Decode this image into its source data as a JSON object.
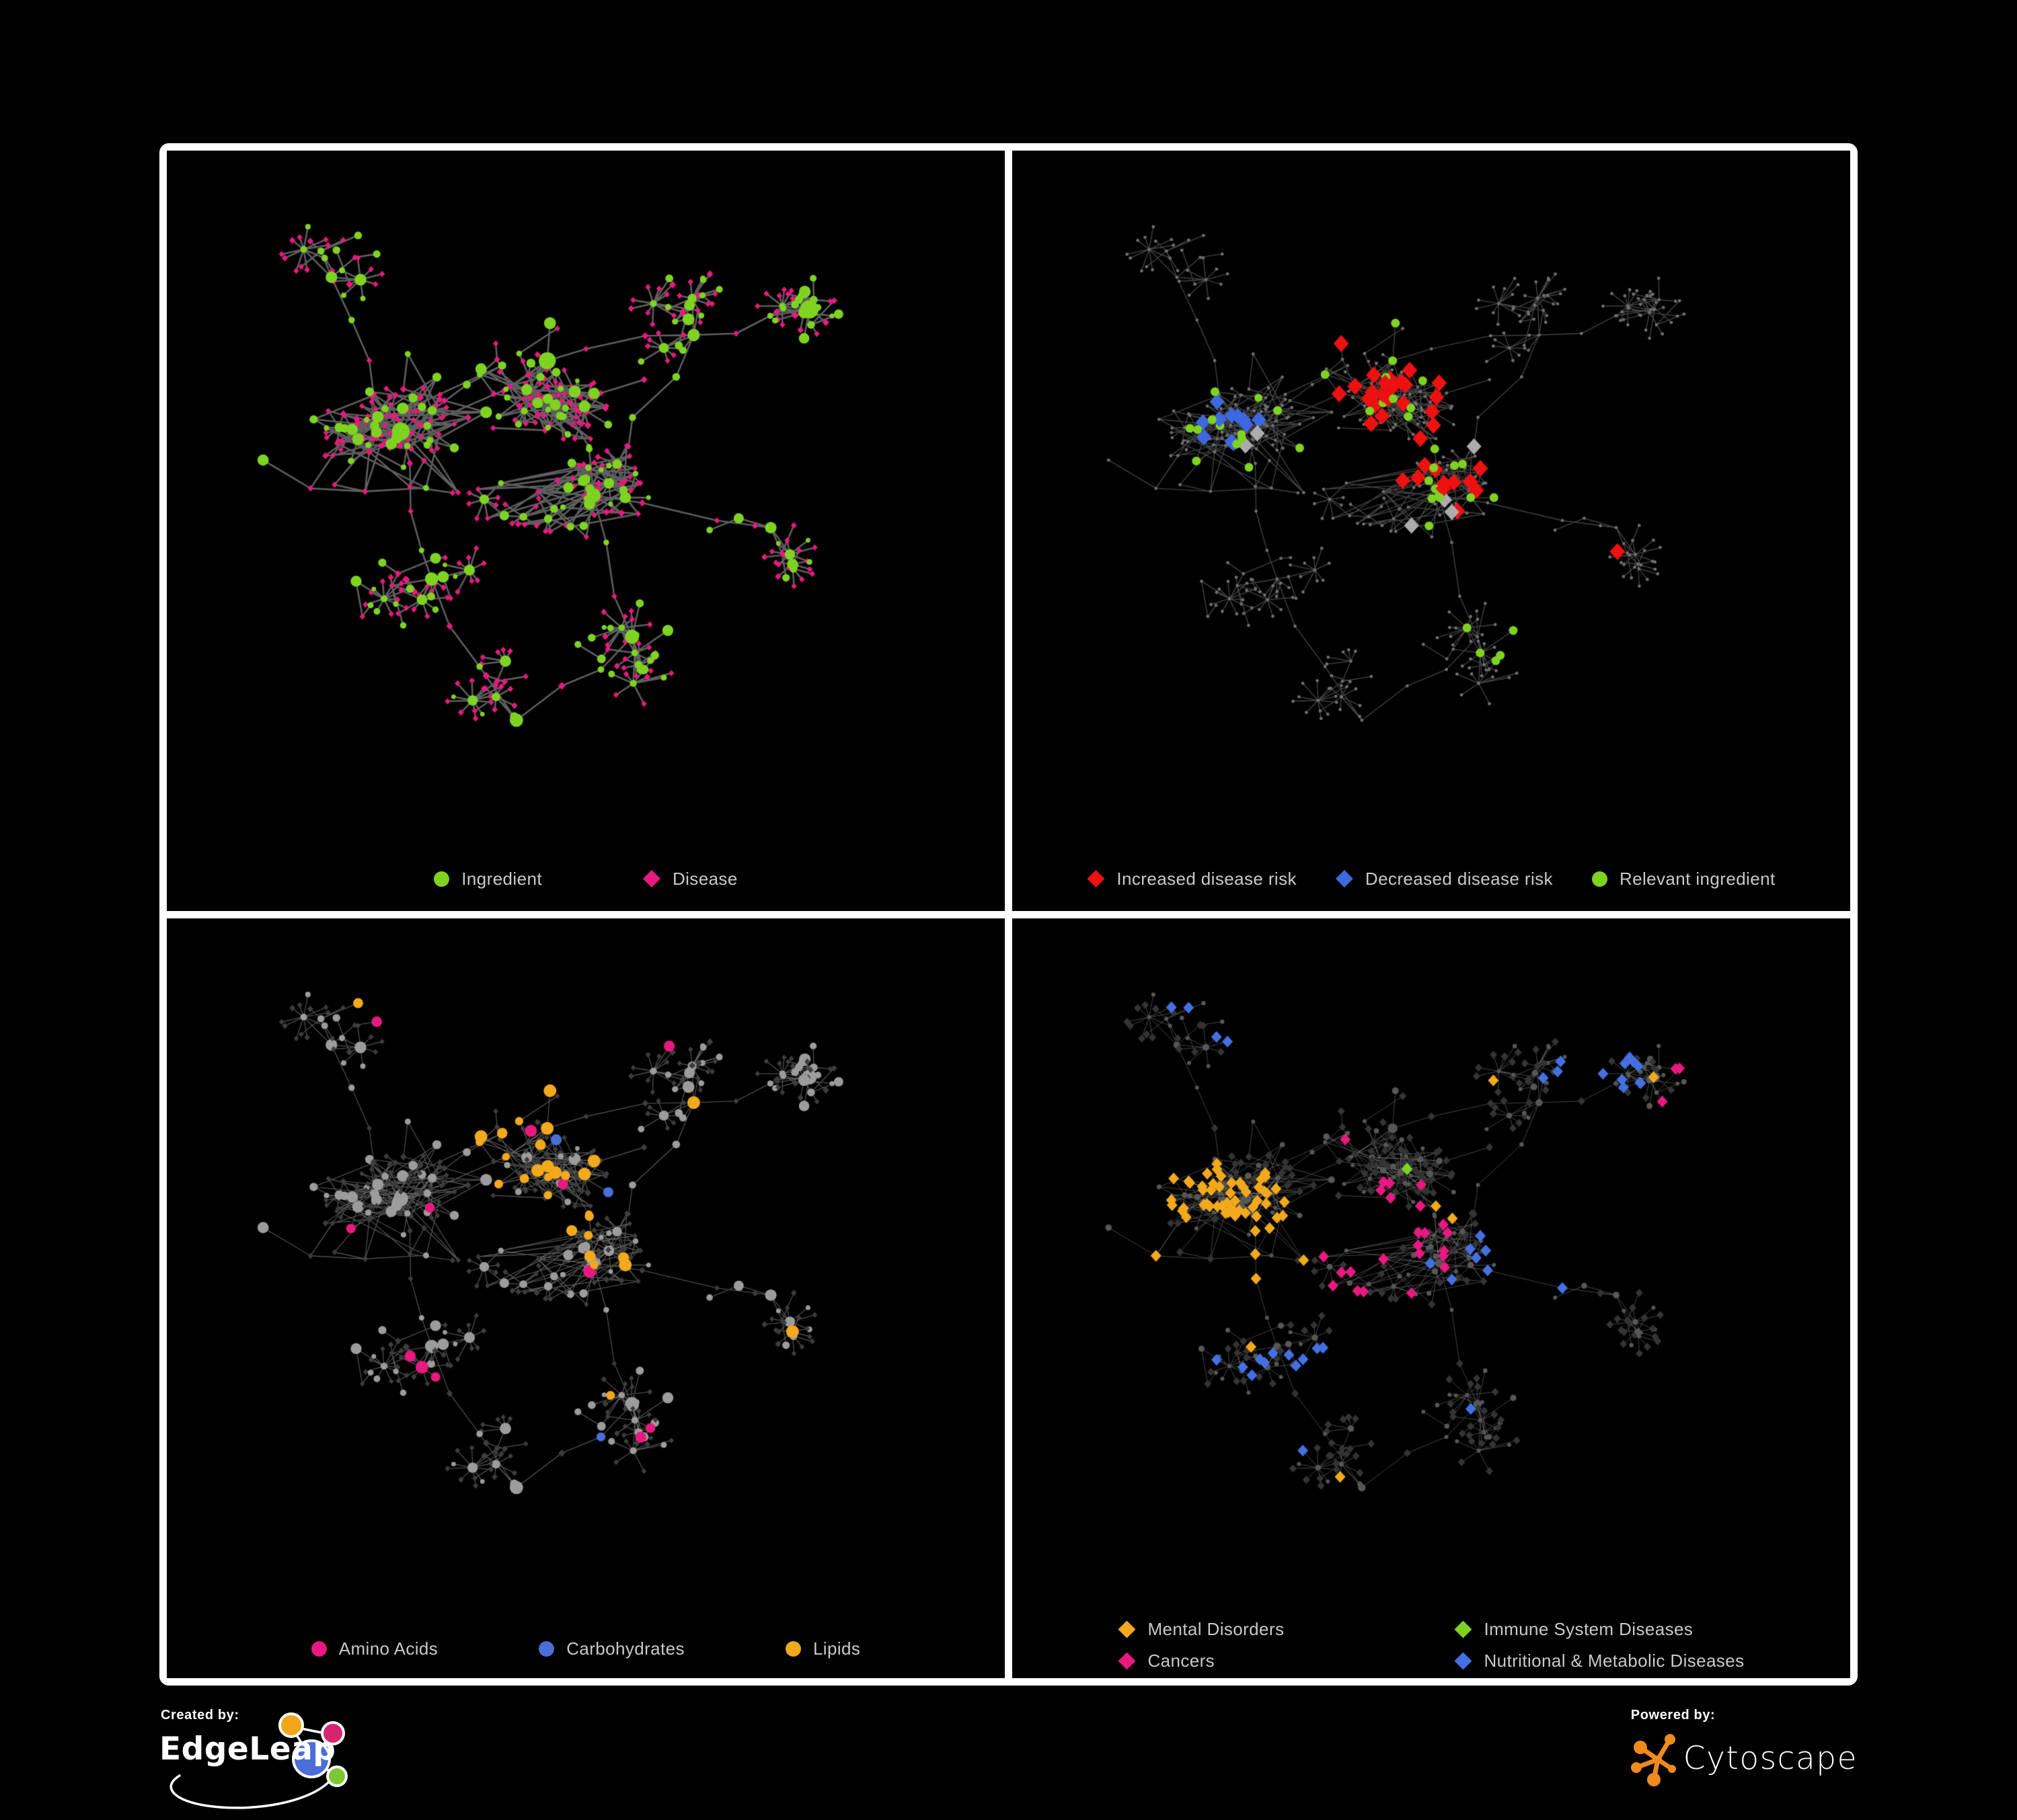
{
  "figure": {
    "background": "#000000",
    "frame_color": "#FFFFFF"
  },
  "panels": [
    {
      "id": "ingredient-disease",
      "legend": [
        {
          "label": "Ingredient",
          "shape": "circle",
          "color": "#7ED321"
        },
        {
          "label": "Disease",
          "shape": "diamond",
          "color": "#E8197F"
        }
      ],
      "style": {
        "edge_color": "#686868",
        "edge_width": 2.6,
        "edge_alpha": 0.9
      }
    },
    {
      "id": "disease-risk",
      "legend": [
        {
          "label": "Increased disease risk",
          "shape": "diamond",
          "color": "#EE1111"
        },
        {
          "label": "Decreased disease risk",
          "shape": "diamond",
          "color": "#3E68E0"
        },
        {
          "label": "Relevant ingredient",
          "shape": "circle",
          "color": "#7ED321"
        }
      ],
      "style": {
        "edge_color": "#4D4D4D",
        "edge_width": 1.4,
        "edge_alpha": 0.85,
        "base_node_color": "#6F6F6F",
        "neutral_highlight_color": "#ACACAC"
      }
    },
    {
      "id": "nutrient-classes",
      "legend": [
        {
          "label": "Amino Acids",
          "shape": "circle",
          "color": "#E8197F"
        },
        {
          "label": "Carbohydrates",
          "shape": "circle",
          "color": "#4A6FD8"
        },
        {
          "label": "Lipids",
          "shape": "circle",
          "color": "#F2A91C"
        }
      ],
      "style": {
        "edge_color": "#949494",
        "edge_width": 1.1,
        "edge_alpha": 0.62,
        "base_circle_color": "#9C9C9C",
        "base_diamond_color": "#3D3D3D"
      }
    },
    {
      "id": "disease-classes",
      "legend": [
        {
          "label": "Mental Disorders",
          "shape": "diamond",
          "color": "#F2A91C"
        },
        {
          "label": "Immune System Diseases",
          "shape": "diamond",
          "color": "#7ED321"
        },
        {
          "label": "Cancers",
          "shape": "diamond",
          "color": "#E8197F"
        },
        {
          "label": "Nutritional & Metabolic Diseases",
          "shape": "diamond",
          "color": "#4470E2"
        }
      ],
      "style": {
        "edge_color": "#8A8A8A",
        "edge_width": 1.0,
        "edge_alpha": 0.5,
        "base_circle_color": "#575757",
        "base_diamond_color": "#343434"
      }
    }
  ],
  "footer": {
    "created_by": "Created by:",
    "brand": "EdgeLeap",
    "powered_by": "Powered by:",
    "engine": "Cytoscape",
    "cytoscape_orange": "#EF8B1E",
    "edgeleap_logo_colors": {
      "blue": "#4A6FD8",
      "orange": "#F2A71B",
      "magenta": "#D6246E",
      "green": "#7CC832"
    }
  },
  "network": {
    "seed": 20,
    "node_shapes": {
      "ingredient": "circle",
      "disease": "diamond"
    }
  }
}
